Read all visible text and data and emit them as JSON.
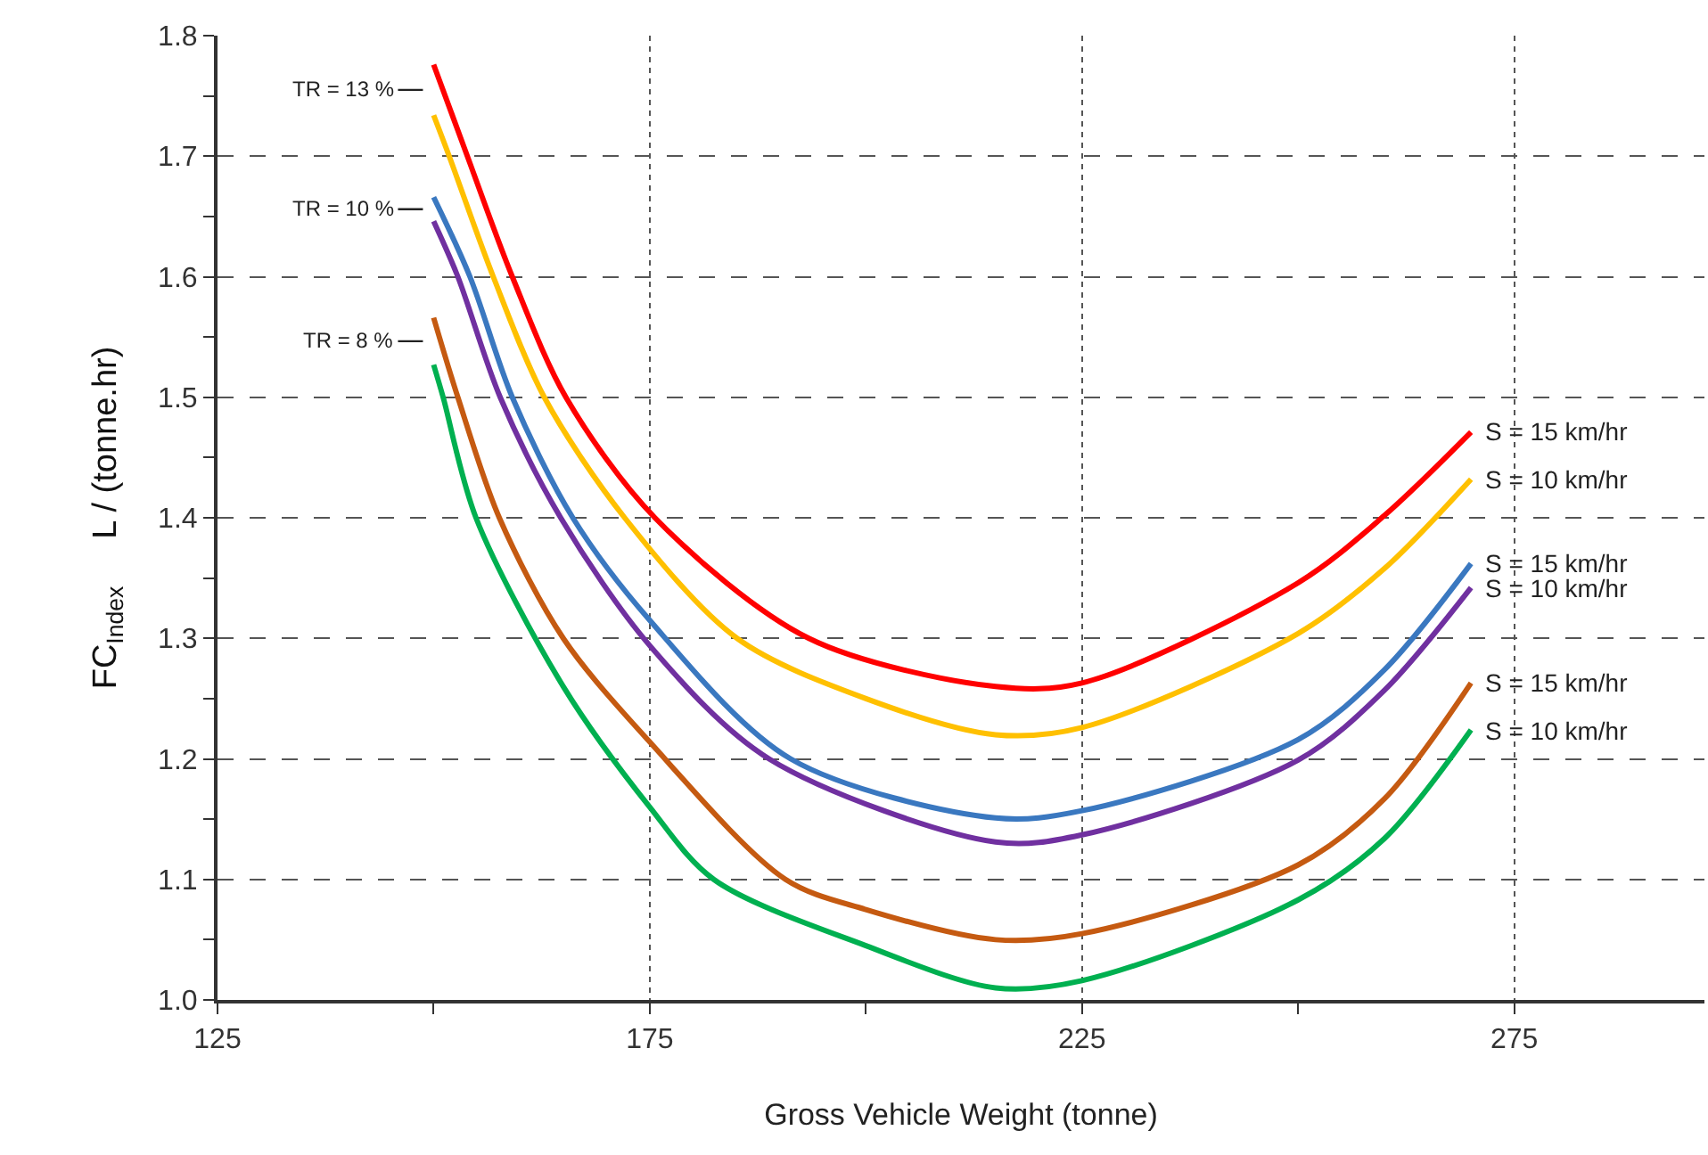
{
  "chart_data": {
    "type": "line",
    "xlabel": "Gross Vehicle Weight (tonne)",
    "ylabel": "FC$_{Index}$     L / (tonne.hr)",
    "series": [
      {
        "color": "#ff0000",
        "x": [
          150,
          153.9,
          159.1,
          165.3,
          175.6,
          193.4,
          215,
          225,
          250,
          260,
          270
        ],
        "values": [
          1.776,
          1.7,
          1.6,
          1.5,
          1.4,
          1.3,
          1.26,
          1.263,
          1.346,
          1.402,
          1.471
        ]
      },
      {
        "color": "#ffc000",
        "x": [
          150,
          151.8,
          156.9,
          162.8,
          172.1,
          185.1,
          200,
          215,
          225,
          250,
          260,
          270
        ],
        "values": [
          1.734,
          1.7,
          1.6,
          1.5,
          1.4,
          1.3,
          1.25,
          1.22,
          1.226,
          1.304,
          1.358,
          1.432
        ]
      },
      {
        "color": "#3a78c0",
        "x": [
          150,
          154.2,
          159.1,
          166.1,
          175,
          191.3,
          215,
          225,
          250,
          260,
          270
        ],
        "values": [
          1.666,
          1.6,
          1.5,
          1.4,
          1.315,
          1.2,
          1.151,
          1.157,
          1.216,
          1.274,
          1.362
        ]
      },
      {
        "color": "#7030a0",
        "x": [
          150,
          152.8,
          157.7,
          164.7,
          175,
          188.8,
          215,
          225,
          250,
          260,
          270
        ],
        "values": [
          1.646,
          1.6,
          1.5,
          1.4,
          1.294,
          1.2,
          1.131,
          1.137,
          1.199,
          1.257,
          1.342
        ]
      },
      {
        "color": "#c55a11",
        "x": [
          150,
          152.8,
          157.6,
          165,
          175,
          190.7,
          200,
          215,
          225,
          250,
          260,
          270
        ],
        "values": [
          1.566,
          1.5,
          1.4,
          1.3,
          1.214,
          1.1,
          1.075,
          1.05,
          1.055,
          1.112,
          1.167,
          1.263
        ]
      },
      {
        "color": "#00b050",
        "x": [
          150,
          151.1,
          154.9,
          165,
          175,
          182.4,
          200,
          215,
          225,
          250,
          260,
          270
        ],
        "values": [
          1.527,
          1.5,
          1.4,
          1.26,
          1.16,
          1.1,
          1.045,
          1.01,
          1.016,
          1.083,
          1.134,
          1.224
        ]
      }
    ],
    "annotations": [
      "TR = 13 %",
      "TR = 10 %",
      "TR = 8 %",
      "S = 15 km/hr",
      "S = 10 km/hr",
      "S = 15 km/hr",
      "S = 10 km/hr",
      "S = 15 km/hr",
      "S = 10 km/hr"
    ],
    "xlim": [
      125,
      297
    ],
    "xticks": [
      125,
      {
        "value": 150,
        "label": null
      },
      175,
      {
        "value": 200,
        "label": null
      },
      225,
      {
        "value": 250,
        "label": null
      },
      275
    ],
    "ylim": [
      1.0,
      1.8
    ],
    "yticks": [
      {
        "value": 1.0,
        "label": "1.0"
      },
      {
        "value": 1.05,
        "label": null
      },
      {
        "value": 1.1,
        "label": "1.1"
      },
      {
        "value": 1.15,
        "label": null
      },
      {
        "value": 1.2,
        "label": "1.2"
      },
      {
        "value": 1.25,
        "label": null
      },
      {
        "value": 1.3,
        "label": "1.3"
      },
      {
        "value": 1.35,
        "label": null
      },
      {
        "value": 1.4,
        "label": "1.4"
      },
      {
        "value": 1.45,
        "label": null
      },
      {
        "value": 1.5,
        "label": "1.5"
      },
      {
        "value": 1.55,
        "label": null
      },
      {
        "value": 1.6,
        "label": "1.6"
      },
      {
        "value": 1.65,
        "label": null
      },
      {
        "value": 1.7,
        "label": "1.7"
      },
      {
        "value": 1.75,
        "label": null
      },
      {
        "value": 1.8,
        "label": "1.8"
      }
    ],
    "grid": true,
    "legend": false,
    "marker": "none",
    "line_style": "solid"
  }
}
